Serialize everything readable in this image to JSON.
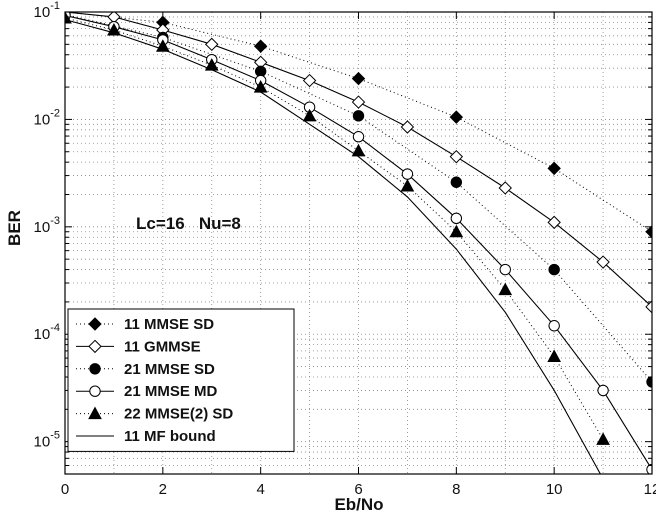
{
  "chart_data": {
    "type": "line",
    "title": "",
    "xlabel": "Eb/No",
    "ylabel": "BER",
    "xlim": [
      0,
      12
    ],
    "ylim": [
      5e-06,
      0.1
    ],
    "yscale": "log",
    "grid": true,
    "legend_position": "bottom-left",
    "x_ticks": [
      "0",
      "2",
      "4",
      "6",
      "8",
      "10",
      "12"
    ],
    "annotation": "Lc=16   Nu=8",
    "series": [
      {
        "name": "11  MMSE SD",
        "marker": "diamond-filled",
        "line": "dotted",
        "x": [
          0,
          2,
          4,
          6,
          8,
          10,
          12
        ],
        "y": [
          0.1,
          0.08,
          0.048,
          0.024,
          0.0105,
          0.0035,
          0.0009
        ]
      },
      {
        "name": "11  GMMSE",
        "marker": "diamond-open",
        "line": "solid",
        "x": [
          0,
          1,
          2,
          3,
          4,
          5,
          6,
          7,
          8,
          9,
          10,
          11,
          12
        ],
        "y": [
          0.1,
          0.09,
          0.068,
          0.05,
          0.034,
          0.023,
          0.0145,
          0.0085,
          0.0045,
          0.0023,
          0.0011,
          0.00047,
          0.00018
        ]
      },
      {
        "name": "21  MMSE SD",
        "marker": "circle-filled",
        "line": "dotted",
        "x": [
          0,
          2,
          4,
          6,
          8,
          10,
          12
        ],
        "y": [
          0.095,
          0.058,
          0.028,
          0.0108,
          0.0026,
          0.0004,
          3.6e-05
        ]
      },
      {
        "name": "21  MMSE MD",
        "marker": "circle-open",
        "line": "solid",
        "x": [
          0,
          1,
          2,
          3,
          4,
          5,
          6,
          7,
          8,
          9,
          10,
          11,
          12
        ],
        "y": [
          0.093,
          0.073,
          0.055,
          0.036,
          0.023,
          0.013,
          0.0069,
          0.0031,
          0.0012,
          0.0004,
          0.00012,
          3e-05,
          5.5e-06
        ]
      },
      {
        "name": "22  MMSE(2) SD",
        "marker": "triangle-filled",
        "line": "dotted",
        "x": [
          0,
          1,
          2,
          3,
          4,
          5,
          6,
          7,
          8,
          9,
          10,
          11
        ],
        "y": [
          0.088,
          0.068,
          0.048,
          0.032,
          0.02,
          0.0108,
          0.0051,
          0.0024,
          0.0009,
          0.00026,
          6.2e-05,
          1.05e-05
        ]
      },
      {
        "name": "11  MF bound",
        "marker": "none",
        "line": "solid",
        "x": [
          0,
          1,
          2,
          3,
          4,
          5,
          6,
          7,
          8,
          9,
          10,
          11,
          12
        ],
        "y": [
          0.085,
          0.064,
          0.045,
          0.029,
          0.018,
          0.009,
          0.0045,
          0.0019,
          0.00062,
          0.00016,
          3e-05,
          4.5e-06,
          1.2e-06
        ]
      }
    ]
  }
}
